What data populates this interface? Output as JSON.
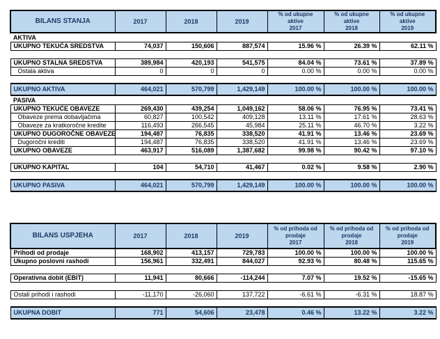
{
  "colors": {
    "header_bg": "#BDD7EE",
    "header_text": "#1F3864",
    "border": "#000000",
    "row_bg": "#FFFFFF"
  },
  "balance_sheet": {
    "title": "BILANS STANJA",
    "col_headers": [
      "2017",
      "2018",
      "2019",
      "% od ukupne aktive\n2017",
      "% od ukupne aktive\n2018",
      "% od ukupne aktive\n2019"
    ],
    "rows": [
      {
        "type": "section",
        "label": "AKTIVA"
      },
      {
        "type": "bold",
        "label": "UKUPNO TEKUĆA SREDSTVA",
        "values": [
          "74,037",
          "150,606",
          "887,574",
          "15.96 %",
          "26.39 %",
          "62.11 %"
        ]
      },
      {
        "type": "spacer"
      },
      {
        "type": "bold",
        "label": "UKUPNO STALNA SREDSTVA",
        "values": [
          "389,984",
          "420,193",
          "541,575",
          "84.04 %",
          "73.61 %",
          "37.89 %"
        ]
      },
      {
        "type": "sub",
        "label": "Ostala aktiva",
        "values": [
          "0",
          "0",
          "0",
          "0.00 %",
          "0.00 %",
          "0.00 %"
        ]
      },
      {
        "type": "spacer"
      },
      {
        "type": "total",
        "label": "UKUPNO AKTIVA",
        "values": [
          "464,021",
          "570,799",
          "1,429,149",
          "100.00 %",
          "100.00 %",
          "100.00 %"
        ]
      },
      {
        "type": "section",
        "label": "PASIVA"
      },
      {
        "type": "bold",
        "label": "UKUPNO TEKUĆE OBAVEZE",
        "values": [
          "269,430",
          "439,254",
          "1,049,162",
          "58.06 %",
          "76.95 %",
          "73.41 %"
        ]
      },
      {
        "type": "sub",
        "label": "Obaveze prema dobavljačima",
        "values": [
          "60,827",
          "100,542",
          "409,128",
          "13.11 %",
          "17.61 %",
          "28.63 %"
        ]
      },
      {
        "type": "sub",
        "label": "Obaveze za kratkoročne kredite",
        "values": [
          "116,493",
          "266,545",
          "45,984",
          "25.11 %",
          "46.70 %",
          "3.22 %"
        ]
      },
      {
        "type": "bold",
        "label": "UKUPNO DUGOROČNE OBAVEZE",
        "values": [
          "194,487",
          "76,835",
          "338,520",
          "41.91 %",
          "13.46 %",
          "23.69 %"
        ]
      },
      {
        "type": "sub",
        "label": "Dugoročni krediti",
        "values": [
          "194,487",
          "76,835",
          "338,520",
          "41.91 %",
          "13.46 %",
          "23.69 %"
        ]
      },
      {
        "type": "bold",
        "label": "UKUPNO OBAVEZE",
        "values": [
          "463,917",
          "516,089",
          "1,387,682",
          "99.98 %",
          "90.42 %",
          "97.10 %"
        ]
      },
      {
        "type": "spacer"
      },
      {
        "type": "bold",
        "label": "UKUPNO KAPITAL",
        "values": [
          "104",
          "54,710",
          "41,467",
          "0.02 %",
          "9.58 %",
          "2.90 %"
        ]
      },
      {
        "type": "spacer"
      },
      {
        "type": "total",
        "label": "UKUPNO PASIVA",
        "values": [
          "464,021",
          "570,799",
          "1,429,149",
          "100.00 %",
          "100.00 %",
          "100.00 %"
        ]
      }
    ]
  },
  "income_statement": {
    "title": "BILANS USPJEHA",
    "col_headers": [
      "2017",
      "2018",
      "2019",
      "% od prihoda od\nprodaje\n2017",
      "% od prihoda od\nprodaje\n2018",
      "% od prihoda od\nprodaje\n2019"
    ],
    "rows": [
      {
        "type": "bold",
        "label": "Prihodi od prodaje",
        "values": [
          "168,902",
          "413,157",
          "729,783",
          "100.00 %",
          "100.00 %",
          "100.00 %"
        ]
      },
      {
        "type": "bold",
        "label": "Ukupno poslovni rashodi",
        "values": [
          "156,961",
          "332,491",
          "844,027",
          "92.93 %",
          "80.48 %",
          "115.65 %"
        ]
      },
      {
        "type": "spacer"
      },
      {
        "type": "bold",
        "label": "Operativna dobit (EBIT)",
        "values": [
          "11,941",
          "80,666",
          "-114,244",
          "7.07 %",
          "19.52 %",
          "-15.65 %"
        ]
      },
      {
        "type": "spacer"
      },
      {
        "type": "normal",
        "label": "Ostali prihodi i rashodi",
        "values": [
          "-11,170",
          "-26,060",
          "137,722",
          "-6.61 %",
          "-6.31 %",
          "18.87 %"
        ]
      },
      {
        "type": "spacer"
      },
      {
        "type": "total",
        "label": "UKUPNA DOBIT",
        "values": [
          "771",
          "54,606",
          "23,478",
          "0.46 %",
          "13.22 %",
          "3.22 %"
        ]
      }
    ]
  }
}
